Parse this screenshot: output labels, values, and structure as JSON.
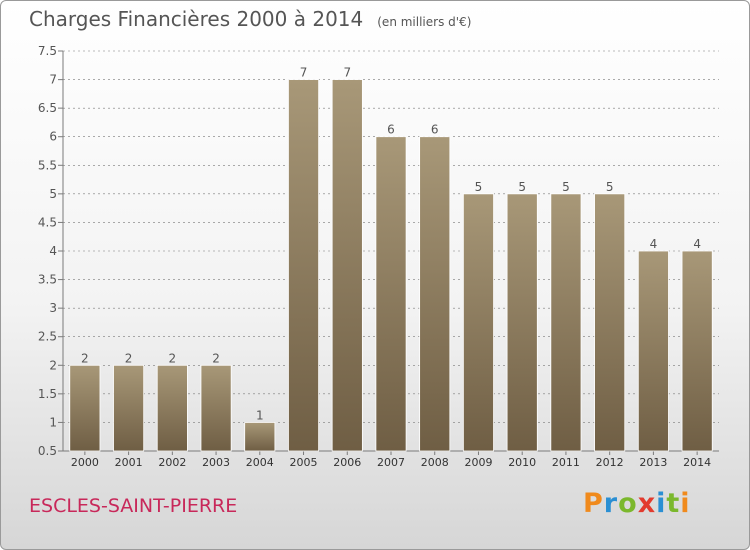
{
  "title": "Charges Financières 2000 à 2014",
  "unit": "(en milliers d'€)",
  "town": "ESCLES-SAINT-PIERRE",
  "brand": {
    "letters": [
      "P",
      "r",
      "o",
      "x",
      "i",
      "t",
      "i"
    ],
    "colors": [
      "#f08a1c",
      "#2a8fd3",
      "#7bb82d",
      "#e23b2e",
      "#2a8fd3",
      "#7bb82d",
      "#f08a1c"
    ]
  },
  "colors": {
    "bar_top": "#a89878",
    "bar_bottom": "#6f5e44",
    "axis": "#7a7a7a",
    "grid": "#7a7a7a",
    "text": "#555555"
  },
  "chart_data": {
    "type": "bar",
    "categories": [
      "2000",
      "2001",
      "2002",
      "2003",
      "2004",
      "2005",
      "2006",
      "2007",
      "2008",
      "2009",
      "2010",
      "2011",
      "2012",
      "2013",
      "2014"
    ],
    "values": [
      2,
      2,
      2,
      2,
      1,
      7,
      7,
      6,
      6,
      5,
      5,
      5,
      5,
      4,
      4
    ],
    "data_labels": [
      "2",
      "2",
      "2",
      "2",
      "1",
      "7",
      "7",
      "6",
      "6",
      "5",
      "5",
      "5",
      "5",
      "4",
      "4"
    ],
    "ylim": [
      0.5,
      7.5
    ],
    "yticks": [
      0.5,
      1,
      1.5,
      2,
      2.5,
      3,
      3.5,
      4,
      4.5,
      5,
      5.5,
      6,
      6.5,
      7,
      7.5
    ],
    "ytick_labels": [
      "0.5",
      "1",
      "1.5",
      "2",
      "2.5",
      "3",
      "3.5",
      "4",
      "4.5",
      "5",
      "5.5",
      "6",
      "6.5",
      "7",
      "7.5"
    ],
    "grid": "horizontal dashed"
  }
}
